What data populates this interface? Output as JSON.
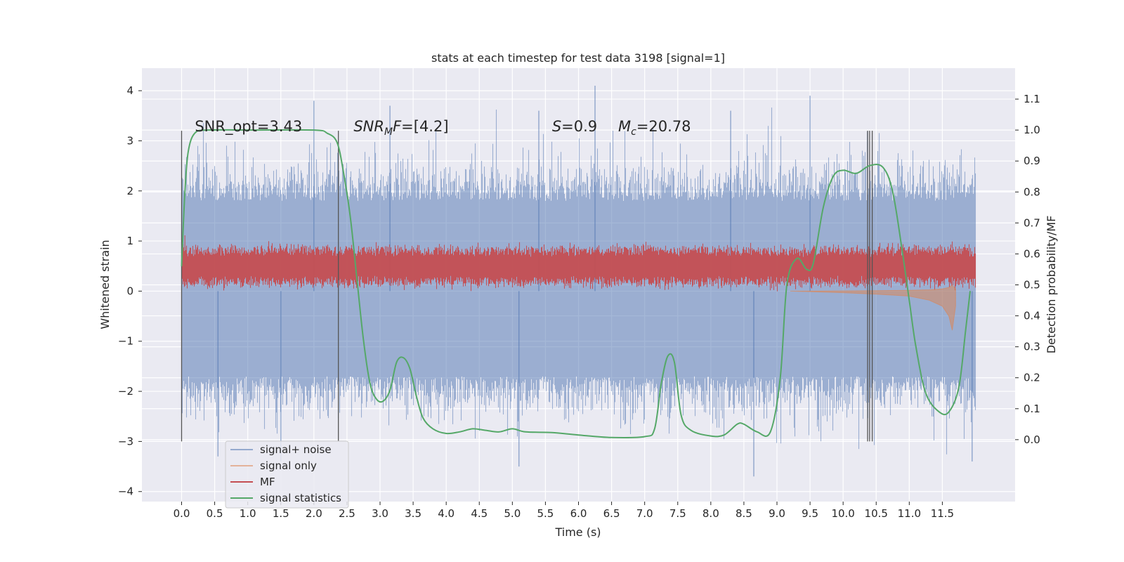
{
  "chart_data": {
    "type": "line",
    "title": "stats at each timestep for test data 3198 [signal=1]",
    "xlabel": "Time (s)",
    "ylabel": "Whitened strain",
    "ylabel_right": "Detection probability/MF",
    "xlim": [
      -0.6,
      12.6
    ],
    "ylim": [
      -4.2,
      4.45
    ],
    "ylim_right": [
      -0.2,
      1.2
    ],
    "x_ticks": [
      0.0,
      0.5,
      1.0,
      1.5,
      2.0,
      2.5,
      3.0,
      3.5,
      4.0,
      4.5,
      5.0,
      5.5,
      6.0,
      6.5,
      7.0,
      7.5,
      8.0,
      8.5,
      9.0,
      9.5,
      10.0,
      10.5,
      11.0,
      11.5
    ],
    "x_tick_labels": [
      "0.0",
      "0.5",
      "1.0",
      "1.5",
      "2.0",
      "2.5",
      "3.0",
      "3.5",
      "4.0",
      "4.5",
      "5.0",
      "5.5",
      "6.0",
      "6.5",
      "7.0",
      "7.5",
      "8.0",
      "8.5",
      "9.0",
      "9.5",
      "10.0",
      "10.5",
      "11.0",
      "11.5"
    ],
    "y_ticks": [
      -4,
      -3,
      -2,
      -1,
      0,
      1,
      2,
      3,
      4
    ],
    "y_tick_labels": [
      "−4",
      "−3",
      "−2",
      "−1",
      "0",
      "1",
      "2",
      "3",
      "4"
    ],
    "y_ticks_right": [
      0.0,
      0.1,
      0.2,
      0.3,
      0.4,
      0.5,
      0.6,
      0.7,
      0.8,
      0.9,
      1.0,
      1.1
    ],
    "y_tick_labels_right": [
      "0.0",
      "0.1",
      "0.2",
      "0.3",
      "0.4",
      "0.5",
      "0.6",
      "0.7",
      "0.8",
      "0.9",
      "1.0",
      "1.1"
    ],
    "grid": true,
    "legend_position": "lower-left",
    "annotations": [
      {
        "text": "SNR_opt=3.43",
        "x": 0.2,
        "y": 3.3
      },
      {
        "text": "SNR",
        "sub": "M",
        "rest": "F=[4.2]",
        "italic": true,
        "x": 2.6,
        "y": 3.3
      },
      {
        "text": "S",
        "rest": "=0.9",
        "italic": true,
        "x": 5.6,
        "y": 3.3
      },
      {
        "text": "M",
        "sub": "c",
        "rest": "=20.78",
        "italic": true,
        "x": 6.6,
        "y": 3.3
      }
    ],
    "vertical_markers": [
      0.0,
      2.37,
      10.37,
      10.4,
      10.44
    ],
    "marker_range": [
      -3.0,
      3.2
    ],
    "series": [
      {
        "name": "signal+ noise",
        "color": "#4c72b0",
        "axis": "left",
        "x_range": [
          0.0,
          12.0
        ],
        "envelope_typical": [
          -1.7,
          1.8
        ],
        "envelope_peaks": [
          -3.7,
          4.1
        ],
        "peaks": [
          {
            "x": 6.25,
            "y": 4.1
          },
          {
            "x": 9.5,
            "y": 3.9
          },
          {
            "x": 2.0,
            "y": 3.8
          },
          {
            "x": 3.15,
            "y": 3.7
          },
          {
            "x": 8.3,
            "y": 3.6
          },
          {
            "x": 5.4,
            "y": 3.6
          },
          {
            "x": 8.65,
            "y": -3.7
          },
          {
            "x": 5.1,
            "y": -3.5
          },
          {
            "x": 1.5,
            "y": -3.4
          },
          {
            "x": 11.95,
            "y": -3.4
          },
          {
            "x": 0.55,
            "y": -3.3
          }
        ]
      },
      {
        "name": "signal only",
        "color": "#dd8452",
        "axis": "left",
        "points": [
          [
            9.2,
            0.0
          ],
          [
            10.0,
            -0.03
          ],
          [
            10.5,
            -0.06
          ],
          [
            11.0,
            -0.1
          ],
          [
            11.3,
            -0.18
          ],
          [
            11.5,
            -0.3
          ],
          [
            11.6,
            -0.5
          ],
          [
            11.65,
            -0.78
          ],
          [
            11.7,
            -0.3
          ]
        ]
      },
      {
        "name": "MF",
        "color": "#c44e52",
        "axis": "right",
        "x_range": [
          0.0,
          12.0
        ],
        "band": [
          0.5,
          0.62
        ],
        "peak": {
          "x": 0.05,
          "y": 0.66
        }
      },
      {
        "name": "signal statistics",
        "color": "#55a868",
        "axis": "right",
        "points": [
          [
            0.0,
            0.56
          ],
          [
            0.05,
            0.8
          ],
          [
            0.1,
            0.93
          ],
          [
            0.2,
            0.99
          ],
          [
            0.4,
            1.0
          ],
          [
            1.0,
            1.0
          ],
          [
            2.0,
            1.0
          ],
          [
            2.2,
            0.99
          ],
          [
            2.35,
            0.96
          ],
          [
            2.45,
            0.86
          ],
          [
            2.55,
            0.72
          ],
          [
            2.65,
            0.52
          ],
          [
            2.75,
            0.32
          ],
          [
            2.85,
            0.18
          ],
          [
            2.95,
            0.13
          ],
          [
            3.05,
            0.125
          ],
          [
            3.15,
            0.16
          ],
          [
            3.25,
            0.25
          ],
          [
            3.35,
            0.265
          ],
          [
            3.45,
            0.23
          ],
          [
            3.55,
            0.14
          ],
          [
            3.65,
            0.07
          ],
          [
            3.8,
            0.035
          ],
          [
            4.0,
            0.02
          ],
          [
            4.2,
            0.025
          ],
          [
            4.4,
            0.035
          ],
          [
            4.6,
            0.03
          ],
          [
            4.8,
            0.025
          ],
          [
            5.0,
            0.035
          ],
          [
            5.2,
            0.025
          ],
          [
            5.6,
            0.023
          ],
          [
            6.0,
            0.015
          ],
          [
            6.5,
            0.007
          ],
          [
            7.0,
            0.01
          ],
          [
            7.15,
            0.035
          ],
          [
            7.25,
            0.18
          ],
          [
            7.35,
            0.27
          ],
          [
            7.45,
            0.25
          ],
          [
            7.55,
            0.08
          ],
          [
            7.7,
            0.03
          ],
          [
            8.0,
            0.012
          ],
          [
            8.2,
            0.015
          ],
          [
            8.4,
            0.05
          ],
          [
            8.5,
            0.05
          ],
          [
            8.7,
            0.025
          ],
          [
            8.9,
            0.025
          ],
          [
            9.05,
            0.2
          ],
          [
            9.15,
            0.5
          ],
          [
            9.3,
            0.585
          ],
          [
            9.45,
            0.55
          ],
          [
            9.55,
            0.57
          ],
          [
            9.7,
            0.75
          ],
          [
            9.85,
            0.85
          ],
          [
            10.0,
            0.87
          ],
          [
            10.2,
            0.86
          ],
          [
            10.4,
            0.885
          ],
          [
            10.6,
            0.88
          ],
          [
            10.75,
            0.8
          ],
          [
            10.9,
            0.6
          ],
          [
            11.0,
            0.45
          ],
          [
            11.1,
            0.3
          ],
          [
            11.25,
            0.15
          ],
          [
            11.45,
            0.09
          ],
          [
            11.6,
            0.09
          ],
          [
            11.75,
            0.17
          ],
          [
            11.85,
            0.35
          ],
          [
            11.92,
            0.48
          ]
        ]
      }
    ]
  }
}
